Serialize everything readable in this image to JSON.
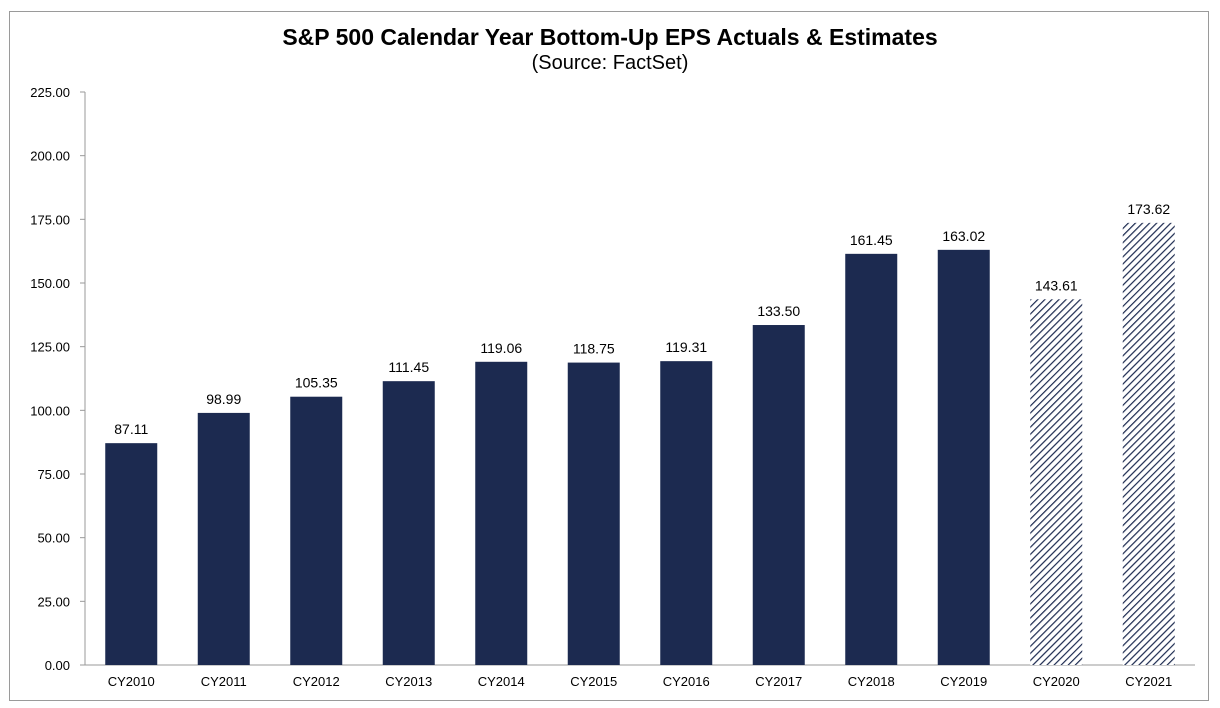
{
  "chart_data": {
    "type": "bar",
    "title": "S&P 500 Calendar Year Bottom-Up EPS Actuals & Estimates",
    "subtitle": "(Source: FactSet)",
    "categories": [
      "CY2010",
      "CY2011",
      "CY2012",
      "CY2013",
      "CY2014",
      "CY2015",
      "CY2016",
      "CY2017",
      "CY2018",
      "CY2019",
      "CY2020",
      "CY2021"
    ],
    "values": [
      87.11,
      98.99,
      105.35,
      111.45,
      119.06,
      118.75,
      119.31,
      133.5,
      161.45,
      163.02,
      143.61,
      173.62
    ],
    "value_labels": [
      "87.11",
      "98.99",
      "105.35",
      "111.45",
      "119.06",
      "118.75",
      "119.31",
      "133.50",
      "161.45",
      "163.02",
      "143.61",
      "173.62"
    ],
    "estimate_flags": [
      false,
      false,
      false,
      false,
      false,
      false,
      false,
      false,
      false,
      false,
      true,
      true
    ],
    "yticks": [
      "0.00",
      "25.00",
      "50.00",
      "75.00",
      "100.00",
      "125.00",
      "150.00",
      "175.00",
      "200.00",
      "225.00"
    ],
    "ylim": [
      0,
      225
    ],
    "xlabel": "",
    "ylabel": "",
    "grid": false,
    "legend": "none",
    "colors": {
      "actual": "#1c2a50",
      "estimate_hatch": "#1c2a50"
    }
  }
}
